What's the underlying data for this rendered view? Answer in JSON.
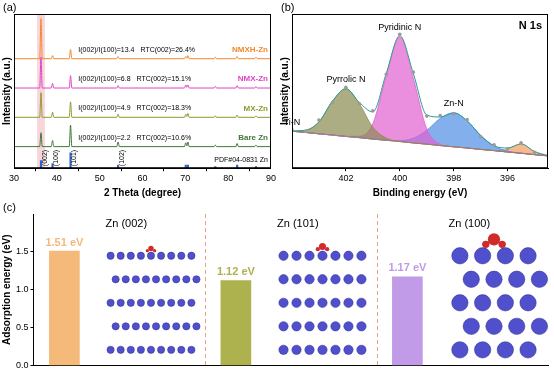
{
  "chart_data": [
    {
      "type": "line",
      "panel_label": "(a)",
      "x_label": "2 Theta (degree)",
      "y_label": "Intensity (a.u.)",
      "xlim": [
        30,
        90
      ],
      "xticks": [
        30,
        40,
        50,
        60,
        70,
        80,
        90
      ],
      "ylim": [
        0,
        100
      ],
      "tick_labels": "x",
      "highlight_x": [
        35.4,
        37.2
      ],
      "x": [
        30,
        36.0,
        36.3,
        36.6,
        38.7,
        39.0,
        39.3,
        42.9,
        43.2,
        43.5,
        54.0,
        54.3,
        54.6,
        69.8,
        70.1,
        70.35,
        70.6,
        70.9,
        76.7,
        77.0,
        77.3,
        81.8,
        82.1,
        82.4,
        86.2,
        86.5,
        86.8,
        90
      ],
      "series": [
        {
          "name": "Bare Zn",
          "color": "#3f7a36",
          "annotation": [
            "I(002)/I(100)=2.2",
            "RTC(002)=10.6%"
          ],
          "values": [
            14,
            14,
            23,
            14,
            14,
            18,
            14,
            14,
            28,
            14,
            14,
            17,
            14,
            14,
            16.5,
            14.5,
            17,
            14,
            14,
            15,
            14,
            14,
            16,
            14,
            14,
            15,
            14,
            14
          ]
        },
        {
          "name": "MX-Zn",
          "color": "#8d9a2e",
          "annotation": [
            "I(002)/I(100)=4.9",
            "RTC(002)=18.3%"
          ],
          "values": [
            33,
            33,
            49,
            33,
            33,
            36.3,
            33,
            33,
            43,
            33,
            33,
            35,
            33,
            33,
            35,
            33.5,
            35.5,
            33,
            33,
            34,
            33,
            33,
            34.5,
            33,
            33,
            34,
            33,
            33
          ]
        },
        {
          "name": "NMX-Zn",
          "color": "#e043c4",
          "annotation": [
            "I(002)/I(100)=6.8",
            "RTC(002)=15.1%"
          ],
          "values": [
            52,
            52,
            72,
            52,
            52,
            55,
            52,
            52,
            60,
            52,
            52,
            53.5,
            52,
            52,
            54,
            52.5,
            54,
            52,
            52,
            53,
            52,
            52,
            53.5,
            52,
            52,
            53,
            52,
            52
          ]
        },
        {
          "name": "NMXH-Zn",
          "color": "#f08a2c",
          "annotation": [
            "I(002)/I(100)=13.4",
            "RTC(002)=26.4%"
          ],
          "values": [
            71,
            71,
            97,
            71,
            71,
            73,
            71,
            71,
            77,
            71,
            71,
            72.5,
            71,
            71,
            72.5,
            71.3,
            73,
            71,
            71,
            72,
            71,
            71,
            72.5,
            71,
            71,
            72,
            71,
            71
          ]
        },
        {
          "name": "PDF#04-0831 Zn",
          "type": "bar",
          "color": "#2f63c8",
          "x": [
            36.3,
            39.0,
            43.2,
            54.3,
            70.1,
            70.6,
            77.0,
            82.1,
            86.5
          ],
          "values": [
            5,
            3,
            10,
            2,
            2,
            2,
            1,
            2,
            1
          ],
          "labels": [
            "(002)",
            "(100)",
            "(101)",
            "(102)",
            null,
            null,
            null,
            null,
            null
          ]
        }
      ]
    },
    {
      "type": "line",
      "panel_label": "(b)",
      "title": "N 1s",
      "x_label": "Binding energy (eV)",
      "y_label": "Intensity (a.u.)",
      "xlim": [
        404,
        394.5
      ],
      "xticks": [
        402,
        400,
        398,
        396
      ],
      "ylim": [
        0,
        100
      ],
      "tick_labels": "x",
      "x": [
        404,
        403.5,
        403,
        402.5,
        402,
        401.5,
        401,
        400.5,
        400,
        399.5,
        399,
        398.5,
        398,
        397.5,
        397,
        396.5,
        396,
        395.5,
        395,
        394.5
      ],
      "series": [
        {
          "type": "scatter",
          "marker": "circle",
          "color": "#9a9a9a",
          "values": [
            24.8,
            23.9,
            31.2,
            42.5,
            52.4,
            41.8,
            37.3,
            60.9,
            86.8,
            62.3,
            33.8,
            34.1,
            35.2,
            31.5,
            20.6,
            15.1,
            12.6,
            16.4,
            10.3,
            8.6
          ]
        },
        {
          "type": "line",
          "color": "#2a9d8f",
          "values": [
            24.1,
            24.6,
            30.0,
            43.4,
            51.6,
            42.6,
            36.5,
            61.7,
            86.0,
            61.5,
            34.5,
            33.2,
            35.9,
            30.7,
            21.2,
            14.5,
            13.1,
            15.8,
            10.8,
            8.1
          ]
        },
        {
          "type": "line",
          "color": "#3a3a3a",
          "values": [
            24.0,
            23.2,
            22.3,
            21.5,
            20.6,
            19.8,
            18.9,
            18.1,
            17.3,
            16.4,
            15.6,
            14.7,
            13.9,
            13.1,
            12.2,
            11.4,
            10.5,
            9.7,
            8.8,
            8.0
          ]
        },
        {
          "name": "Pyrrolic N",
          "type": "area",
          "color": "#8a8a4e",
          "values": [
            24.1,
            24.6,
            30.0,
            43.4,
            51.6,
            41.7,
            26.6,
            19.5,
            17.4,
            16.4,
            15.6,
            14.7,
            13.9,
            13.1,
            12.2,
            11.4,
            10.5,
            9.7,
            8.8,
            8.0
          ]
        },
        {
          "name": "Pyridinic N",
          "type": "area",
          "color": "#e05fcf",
          "values": [
            24.0,
            23.2,
            22.3,
            21.5,
            20.6,
            20.7,
            28.8,
            60.2,
            85.3,
            58.5,
            25.5,
            15.6,
            13.9,
            13.1,
            12.2,
            11.4,
            10.5,
            9.7,
            8.8,
            8.0
          ]
        },
        {
          "name": "Zn-N",
          "type": "area",
          "color": "#4f8ee6",
          "values": [
            24.0,
            23.2,
            22.3,
            21.5,
            20.6,
            19.8,
            18.9,
            18.1,
            17.9,
            19.4,
            24.6,
            32.3,
            35.9,
            30.7,
            21.2,
            14.4,
            11.1,
            9.8,
            8.8,
            8.0
          ]
        },
        {
          "name": "Ti-N",
          "type": "area",
          "color": "#f29a5e",
          "values": [
            24.0,
            23.2,
            22.3,
            21.5,
            20.6,
            19.8,
            18.9,
            18.1,
            17.3,
            16.4,
            15.6,
            14.7,
            13.9,
            13.1,
            12.2,
            11.5,
            12.5,
            15.7,
            10.8,
            8.1
          ]
        }
      ]
    },
    {
      "type": "bar",
      "panel_label": "(c)",
      "y_label": "Adsorption energy (eV)",
      "categories": [
        "Zn (002)",
        "Zn (101)",
        "Zn (100)"
      ],
      "values": [
        1.51,
        1.12,
        1.17
      ],
      "value_labels": [
        "1.51 eV",
        "1.12 eV",
        "1.17 eV"
      ],
      "data_labels": true,
      "colors": [
        "#f5b97a",
        "#aeb24e",
        "#c29be8"
      ],
      "ylim": [
        0,
        2
      ],
      "yticks": [
        {
          "value": 0,
          "label": "0.0"
        },
        0.5,
        {
          "value": 1,
          "label": "1.0"
        },
        {
          "value": 1.5,
          "label": "1.5"
        }
      ],
      "tick_labels": "y"
    }
  ]
}
